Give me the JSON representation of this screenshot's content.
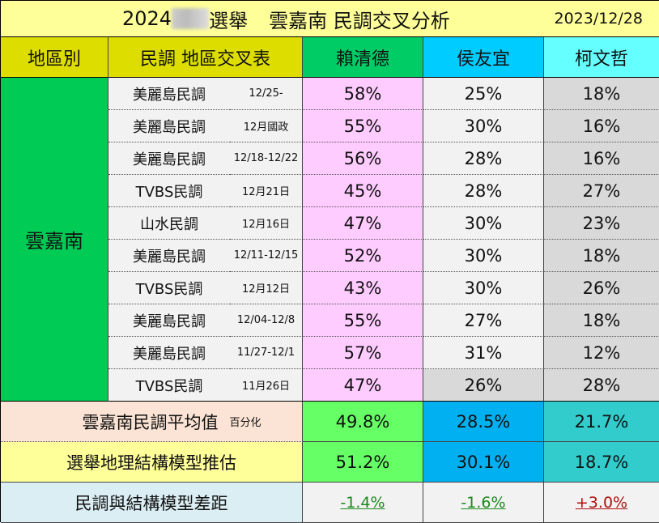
{
  "title": {
    "prefix": "2024",
    "suffix": "選舉",
    "main": "雲嘉南 民調交叉分析",
    "date": "2023/12/28"
  },
  "header": {
    "region": "地區別",
    "poll": "民調 地區交叉表",
    "candidates": [
      "賴清德",
      "侯友宜",
      "柯文哲"
    ]
  },
  "region": "雲嘉南",
  "rows": [
    {
      "name": "美麗島民調",
      "date": "12/25-",
      "v": [
        "58%",
        "25%",
        "18%"
      ]
    },
    {
      "name": "美麗島民調",
      "date": "12月國政",
      "v": [
        "55%",
        "30%",
        "16%"
      ]
    },
    {
      "name": "美麗島民調",
      "date": "12/18-12/22",
      "v": [
        "56%",
        "28%",
        "16%"
      ]
    },
    {
      "name": "TVBS民調",
      "date": "12月21日",
      "v": [
        "45%",
        "28%",
        "27%"
      ]
    },
    {
      "name": "山水民調",
      "date": "12月16日",
      "v": [
        "47%",
        "30%",
        "23%"
      ]
    },
    {
      "name": "美麗島民調",
      "date": "12/11-12/15",
      "v": [
        "52%",
        "30%",
        "18%"
      ]
    },
    {
      "name": "TVBS民調",
      "date": "12月12日",
      "v": [
        "43%",
        "30%",
        "26%"
      ]
    },
    {
      "name": "美麗島民調",
      "date": "12/04-12/8",
      "v": [
        "55%",
        "27%",
        "18%"
      ]
    },
    {
      "name": "美麗島民調",
      "date": "11/27-12/1",
      "v": [
        "57%",
        "31%",
        "12%"
      ]
    },
    {
      "name": "TVBS民調",
      "date": "11月26日",
      "v": [
        "47%",
        "26%",
        "28%"
      ]
    }
  ],
  "average": {
    "label": "雲嘉南民調平均值",
    "note": "百分化",
    "v": [
      "49.8%",
      "28.5%",
      "21.7%"
    ]
  },
  "model": {
    "label": "選舉地理結構模型推估",
    "v": [
      "51.2%",
      "30.1%",
      "18.7%"
    ]
  },
  "gap": {
    "label": "民調與結構模型差距",
    "v": [
      "-1.4%",
      "-1.6%",
      "+3.0%"
    ],
    "colors": [
      "#1a8a1a",
      "#1a8a1a",
      "#b01010"
    ]
  }
}
